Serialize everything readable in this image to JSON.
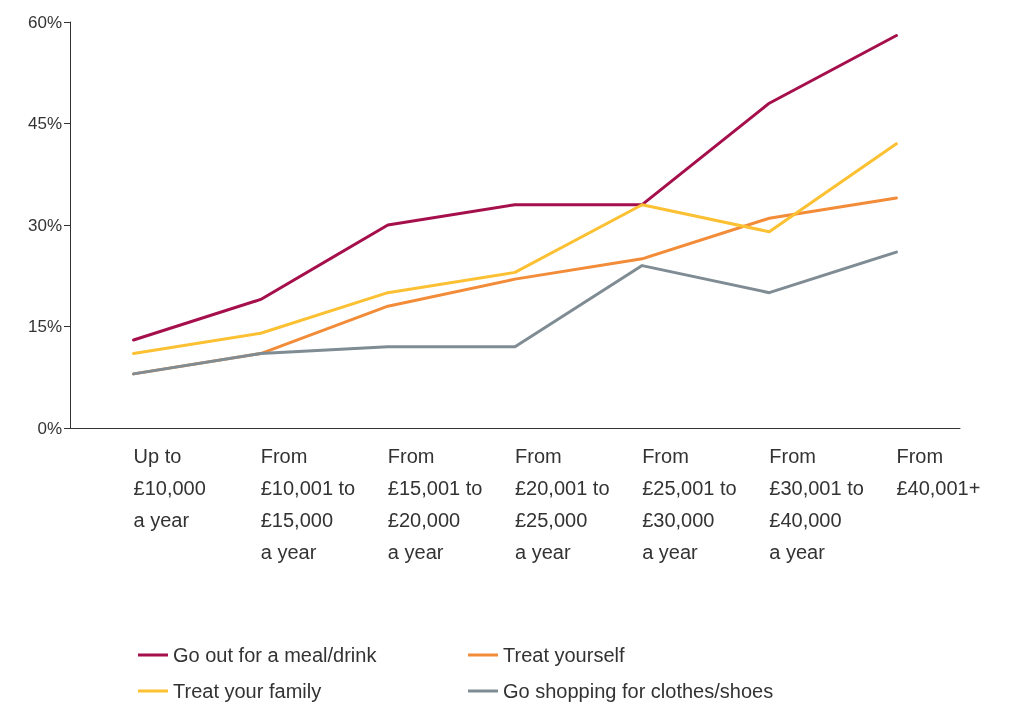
{
  "chart_data": {
    "type": "line",
    "categories": [
      "Up to\n£10,000\na year",
      "From\n£10,001 to\n£15,000\na year",
      "From\n£15,001 to\n£20,000\na year",
      "From\n£20,001 to\n£25,000\na year",
      "From\n£25,001 to\n£30,000\na year",
      "From\n£30,001 to\n£40,000\na year",
      "From\n£40,001+"
    ],
    "series": [
      {
        "name": "Go out for a meal/drink",
        "color": "#a50f4b",
        "values": [
          13,
          19,
          30,
          33,
          33,
          48,
          58
        ]
      },
      {
        "name": "Treat yourself",
        "color": "#f28c38",
        "values": [
          8,
          11,
          18,
          22,
          25,
          31,
          34
        ]
      },
      {
        "name": "Treat your family",
        "color": "#fcc033",
        "values": [
          11,
          14,
          20,
          23,
          33,
          29,
          42
        ]
      },
      {
        "name": "Go shopping for clothes/shoes",
        "color": "#7f8c94",
        "values": [
          8,
          11,
          12,
          12,
          24,
          20,
          26
        ]
      }
    ],
    "ylim": [
      0,
      60
    ],
    "yticks": [
      {
        "value": 0,
        "label": "0%"
      },
      {
        "value": 15,
        "label": "15%"
      },
      {
        "value": 30,
        "label": "30%"
      },
      {
        "value": 45,
        "label": "45%"
      },
      {
        "value": 60,
        "label": "60%"
      }
    ],
    "grid": false,
    "legend": "bottom",
    "marker": "none",
    "line_style": "solid"
  }
}
